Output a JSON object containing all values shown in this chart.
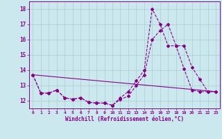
{
  "xlabel": "Windchill (Refroidissement éolien,°C)",
  "bg_color": "#cce8ef",
  "line_color": "#880088",
  "grid_color": "#aacccc",
  "xlim": [
    -0.5,
    23.5
  ],
  "ylim": [
    11.5,
    18.5
  ],
  "xticks": [
    0,
    1,
    2,
    3,
    4,
    5,
    6,
    7,
    8,
    9,
    10,
    11,
    12,
    13,
    14,
    15,
    16,
    17,
    18,
    19,
    20,
    21,
    22,
    23
  ],
  "yticks": [
    12,
    13,
    14,
    15,
    16,
    17,
    18
  ],
  "line1_x": [
    0,
    1,
    2,
    3,
    4,
    5,
    6,
    7,
    8,
    9,
    10,
    11,
    12,
    13,
    14,
    15,
    16,
    17,
    18,
    19,
    20,
    21,
    22,
    23
  ],
  "line1_y": [
    13.7,
    12.5,
    12.5,
    12.7,
    12.2,
    12.1,
    12.2,
    11.9,
    11.85,
    11.85,
    11.7,
    12.1,
    12.3,
    13.0,
    13.7,
    16.0,
    16.6,
    17.0,
    15.6,
    15.6,
    14.2,
    13.4,
    12.6,
    12.6
  ],
  "line2_x": [
    0,
    1,
    2,
    3,
    4,
    5,
    6,
    7,
    8,
    9,
    10,
    11,
    12,
    13,
    14,
    15,
    16,
    17,
    18,
    19,
    20,
    21,
    22,
    23
  ],
  "line2_y": [
    13.7,
    12.5,
    12.5,
    12.7,
    12.2,
    12.1,
    12.2,
    11.9,
    11.85,
    11.85,
    11.7,
    12.2,
    12.6,
    13.3,
    14.0,
    18.0,
    17.0,
    15.6,
    15.6,
    14.1,
    12.7,
    12.6,
    12.6,
    12.6
  ],
  "line3_x": [
    0,
    23
  ],
  "line3_y": [
    13.7,
    12.6
  ]
}
